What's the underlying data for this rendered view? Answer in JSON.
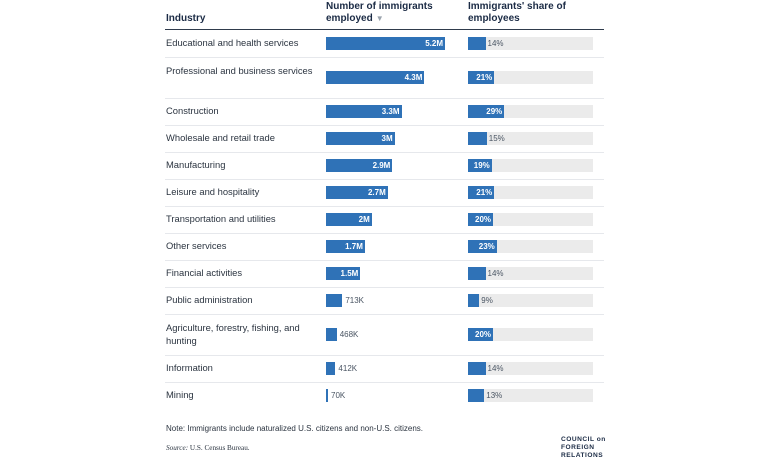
{
  "chart_data": {
    "type": "table",
    "columns": {
      "industry": "Industry",
      "employed": "Number of immigrants employed",
      "share": "Immigrants' share of employees"
    },
    "sort_icon": "sort-down-icon",
    "rows": [
      {
        "industry": "Educational and health services",
        "employed": 5200000,
        "employed_label": "5.2M",
        "share": 14,
        "share_label": "14%"
      },
      {
        "industry": "Professional and business services",
        "employed": 4300000,
        "employed_label": "4.3M",
        "share": 21,
        "share_label": "21%"
      },
      {
        "industry": "Construction",
        "employed": 3300000,
        "employed_label": "3.3M",
        "share": 29,
        "share_label": "29%"
      },
      {
        "industry": "Wholesale and retail trade",
        "employed": 3000000,
        "employed_label": "3M",
        "share": 15,
        "share_label": "15%"
      },
      {
        "industry": "Manufacturing",
        "employed": 2900000,
        "employed_label": "2.9M",
        "share": 19,
        "share_label": "19%"
      },
      {
        "industry": "Leisure and hospitality",
        "employed": 2700000,
        "employed_label": "2.7M",
        "share": 21,
        "share_label": "21%"
      },
      {
        "industry": "Transportation and utilities",
        "employed": 2000000,
        "employed_label": "2M",
        "share": 20,
        "share_label": "20%"
      },
      {
        "industry": "Other services",
        "employed": 1700000,
        "employed_label": "1.7M",
        "share": 23,
        "share_label": "23%"
      },
      {
        "industry": "Financial activities",
        "employed": 1500000,
        "employed_label": "1.5M",
        "share": 14,
        "share_label": "14%"
      },
      {
        "industry": "Public administration",
        "employed": 713000,
        "employed_label": "713K",
        "share": 9,
        "share_label": "9%"
      },
      {
        "industry": "Agriculture, forestry, fishing, and hunting",
        "employed": 468000,
        "employed_label": "468K",
        "share": 20,
        "share_label": "20%"
      },
      {
        "industry": "Information",
        "employed": 412000,
        "employed_label": "412K",
        "share": 14,
        "share_label": "14%"
      },
      {
        "industry": "Mining",
        "employed": 70000,
        "employed_label": "70K",
        "share": 13,
        "share_label": "13%"
      }
    ],
    "employed_max": 5200000,
    "share_max": 100,
    "note": "Note: Immigrants include naturalized U.S. citizens and non-U.S. citizens.",
    "source_label": "Source:",
    "source_text": "U.S. Census Bureau.",
    "logo_lines": [
      "COUNCIL on",
      "FOREIGN",
      "RELATIONS"
    ],
    "colors": {
      "bar": "#2f72b7",
      "track": "#ebebeb"
    }
  }
}
